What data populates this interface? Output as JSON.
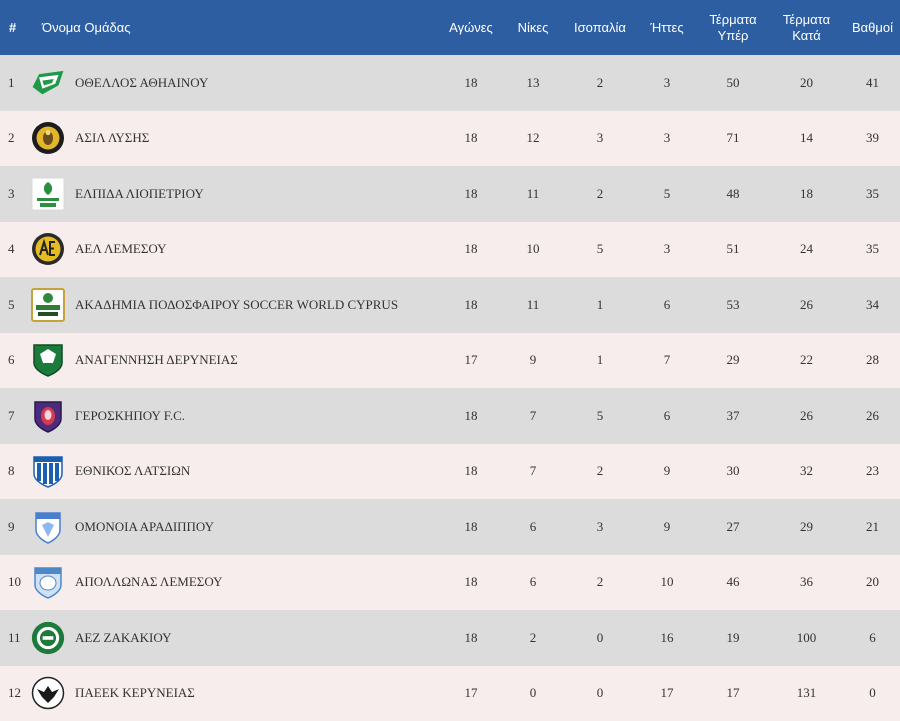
{
  "colors": {
    "header_bg": "#2e5ea2",
    "row_odd": "#dcdcdc",
    "row_even": "#f8eded"
  },
  "headers": {
    "rank": "#",
    "team": "Όνομα Ομάδας",
    "played": "Αγώνες",
    "wins": "Νίκες",
    "draws": "Ισοπαλία",
    "losses": "Ήττες",
    "goals_for": "Τέρματα Υπέρ",
    "goals_against": "Τέρματα Κατά",
    "points": "Βαθμοί"
  },
  "rows": [
    {
      "rank": "1",
      "team": "ΟΘΕΛΛΟΣ ΑΘΗΑΙΝΟΥ",
      "logo": "othellos-crest-icon",
      "played": "18",
      "wins": "13",
      "draws": "2",
      "losses": "3",
      "goals_for": "50",
      "goals_against": "20",
      "points": "41"
    },
    {
      "rank": "2",
      "team": "ΑΣΙΛ ΛΥΣΗΣ",
      "logo": "asil-crest-icon",
      "played": "18",
      "wins": "12",
      "draws": "3",
      "losses": "3",
      "goals_for": "71",
      "goals_against": "14",
      "points": "39"
    },
    {
      "rank": "3",
      "team": "ΕΛΠΙΔΑ ΛΙΟΠΕΤΡΙΟΥ",
      "logo": "elpida-crest-icon",
      "played": "18",
      "wins": "11",
      "draws": "2",
      "losses": "5",
      "goals_for": "48",
      "goals_against": "18",
      "points": "35"
    },
    {
      "rank": "4",
      "team": "ΑΕΛ ΛΕΜΕΣΟΥ",
      "logo": "ael-crest-icon",
      "played": "18",
      "wins": "10",
      "draws": "5",
      "losses": "3",
      "goals_for": "51",
      "goals_against": "24",
      "points": "35"
    },
    {
      "rank": "5",
      "team": "ΑΚΑΔΗΜΙΑ ΠΟΔΟΣΦΑΙΡΟΥ SOCCER WORLD CYPRUS",
      "logo": "soccer-world-crest-icon",
      "played": "18",
      "wins": "11",
      "draws": "1",
      "losses": "6",
      "goals_for": "53",
      "goals_against": "26",
      "points": "34"
    },
    {
      "rank": "6",
      "team": "ΑΝΑΓΕΝΝΗΣΗ ΔΕΡΥΝΕΙΑΣ",
      "logo": "anagennisi-crest-icon",
      "played": "17",
      "wins": "9",
      "draws": "1",
      "losses": "7",
      "goals_for": "29",
      "goals_against": "22",
      "points": "28"
    },
    {
      "rank": "7",
      "team": "ΓΕΡΟΣΚΗΠΟΥ F.C.",
      "logo": "geroskipou-crest-icon",
      "played": "18",
      "wins": "7",
      "draws": "5",
      "losses": "6",
      "goals_for": "37",
      "goals_against": "26",
      "points": "26"
    },
    {
      "rank": "8",
      "team": "ΕΘΝΙΚΟΣ ΛΑΤΣΙΩΝ",
      "logo": "ethnikos-crest-icon",
      "played": "18",
      "wins": "7",
      "draws": "2",
      "losses": "9",
      "goals_for": "30",
      "goals_against": "32",
      "points": "23"
    },
    {
      "rank": "9",
      "team": "ΟΜΟΝΟΙΑ ΑΡΑΔΙΠΠΟΥ",
      "logo": "omonoia-crest-icon",
      "played": "18",
      "wins": "6",
      "draws": "3",
      "losses": "9",
      "goals_for": "27",
      "goals_against": "29",
      "points": "21"
    },
    {
      "rank": "10",
      "team": "ΑΠΟΛΛΩΝΑΣ ΛΕΜΕΣΟΥ",
      "logo": "apollon-crest-icon",
      "played": "18",
      "wins": "6",
      "draws": "2",
      "losses": "10",
      "goals_for": "46",
      "goals_against": "36",
      "points": "20"
    },
    {
      "rank": "11",
      "team": "ΑΕΖ ΖΑΚΑΚΙΟΥ",
      "logo": "aez-crest-icon",
      "played": "18",
      "wins": "2",
      "draws": "0",
      "losses": "16",
      "goals_for": "19",
      "goals_against": "100",
      "points": "6"
    },
    {
      "rank": "12",
      "team": "ΠΑΕΕΚ ΚΕΡΥΝΕΙΑΣ",
      "logo": "paeek-crest-icon",
      "played": "17",
      "wins": "0",
      "draws": "0",
      "losses": "17",
      "goals_for": "17",
      "goals_against": "131",
      "points": "0"
    }
  ]
}
